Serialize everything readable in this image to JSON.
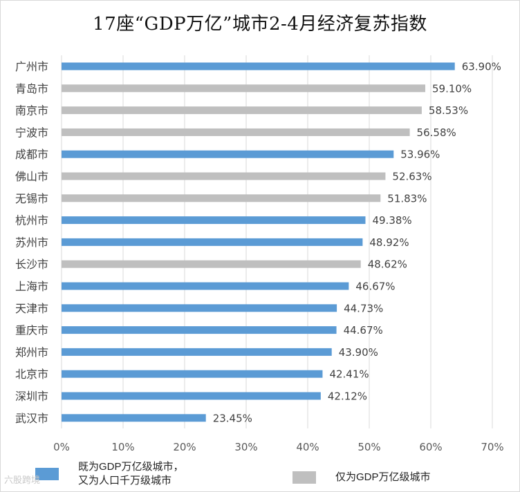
{
  "chart_data": {
    "type": "bar",
    "orientation": "horizontal",
    "title": "17座“GDP万亿”城市2-4月经济复苏指数",
    "categories": [
      "广州市",
      "青岛市",
      "南京市",
      "宁波市",
      "成都市",
      "佛山市",
      "无锡市",
      "杭州市",
      "苏州市",
      "长沙市",
      "上海市",
      "天津市",
      "重庆市",
      "郑州市",
      "北京市",
      "深圳市",
      "武汉市"
    ],
    "values": [
      63.9,
      59.1,
      58.53,
      56.58,
      53.96,
      52.63,
      51.83,
      49.38,
      48.92,
      48.62,
      46.67,
      44.73,
      44.67,
      43.9,
      42.41,
      42.12,
      23.45
    ],
    "value_labels": [
      "63.90%",
      "59.10%",
      "58.53%",
      "56.58%",
      "53.96%",
      "52.63%",
      "51.83%",
      "49.38%",
      "48.92%",
      "48.62%",
      "46.67%",
      "44.73%",
      "44.67%",
      "43.90%",
      "42.41%",
      "42.12%",
      "23.45%"
    ],
    "groups": [
      "both",
      "gdp",
      "gdp",
      "gdp",
      "both",
      "gdp",
      "gdp",
      "both",
      "both",
      "gdp",
      "both",
      "both",
      "both",
      "both",
      "both",
      "both",
      "both"
    ],
    "xlim": [
      0,
      70
    ],
    "xticks": [
      "0%",
      "10%",
      "20%",
      "30%",
      "40%",
      "50%",
      "60%",
      "70%"
    ],
    "grid": true,
    "legend_position": "bottom",
    "legend": [
      {
        "key": "both",
        "label_lines": [
          "既为GDP万亿级城市，",
          "又为人口千万级城市"
        ],
        "color": "#5b9bd5"
      },
      {
        "key": "gdp",
        "label_lines": [
          "仅为GDP万亿级城市"
        ],
        "color": "#bfbfbf"
      }
    ],
    "colors": {
      "both": "#5b9bd5",
      "gdp": "#bfbfbf",
      "grid": "#d9d9d9"
    }
  },
  "watermark": "六股跨境"
}
